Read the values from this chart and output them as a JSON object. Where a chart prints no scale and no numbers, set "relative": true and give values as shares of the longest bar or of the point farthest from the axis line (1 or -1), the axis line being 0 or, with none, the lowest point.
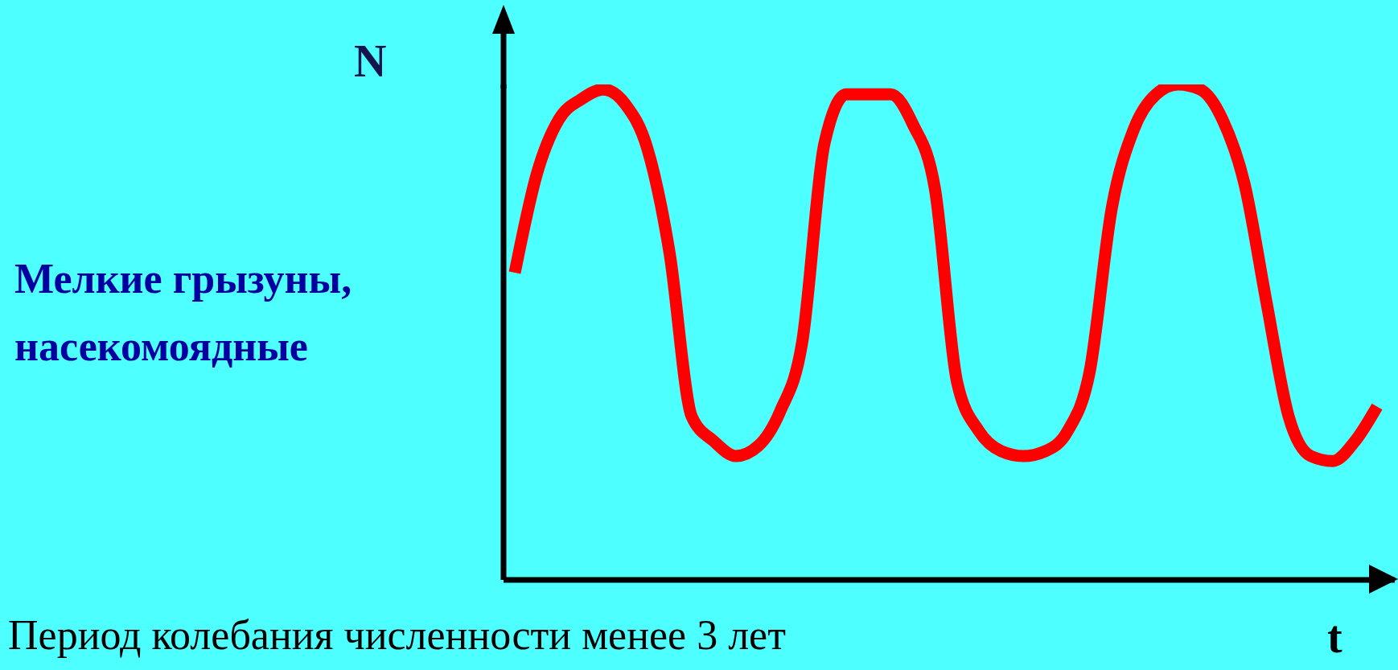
{
  "chart_data": {
    "type": "line",
    "relative": true,
    "ylabel": "N",
    "xlabel": "t",
    "annotations": [
      "Мелкие грызуны, насекомоядные",
      "Период колебания численности менее 3 лет"
    ],
    "categories": [
      null,
      null,
      null,
      null,
      null,
      null,
      null,
      null,
      null,
      null,
      null,
      null,
      null,
      null,
      null,
      null,
      null,
      null,
      null,
      null,
      null,
      null,
      null,
      null,
      null,
      null,
      null,
      null,
      null,
      null,
      null,
      null,
      null,
      null,
      null,
      null,
      null,
      null,
      null,
      null
    ],
    "series": [
      {
        "color": "#ff0000",
        "values": [
          0.62,
          0.82,
          0.93,
          0.97,
          0.99,
          0.96,
          0.87,
          0.66,
          0.33,
          0.28,
          0.25,
          0.27,
          0.34,
          0.48,
          0.88,
          0.98,
          0.98,
          0.98,
          0.92,
          0.79,
          0.4,
          0.3,
          0.26,
          0.25,
          0.26,
          0.3,
          0.42,
          0.75,
          0.91,
          0.98,
          1,
          0.99,
          0.93,
          0.8,
          0.56,
          0.33,
          0.25,
          0.24,
          0.28,
          0.35
        ]
      }
    ]
  }
}
